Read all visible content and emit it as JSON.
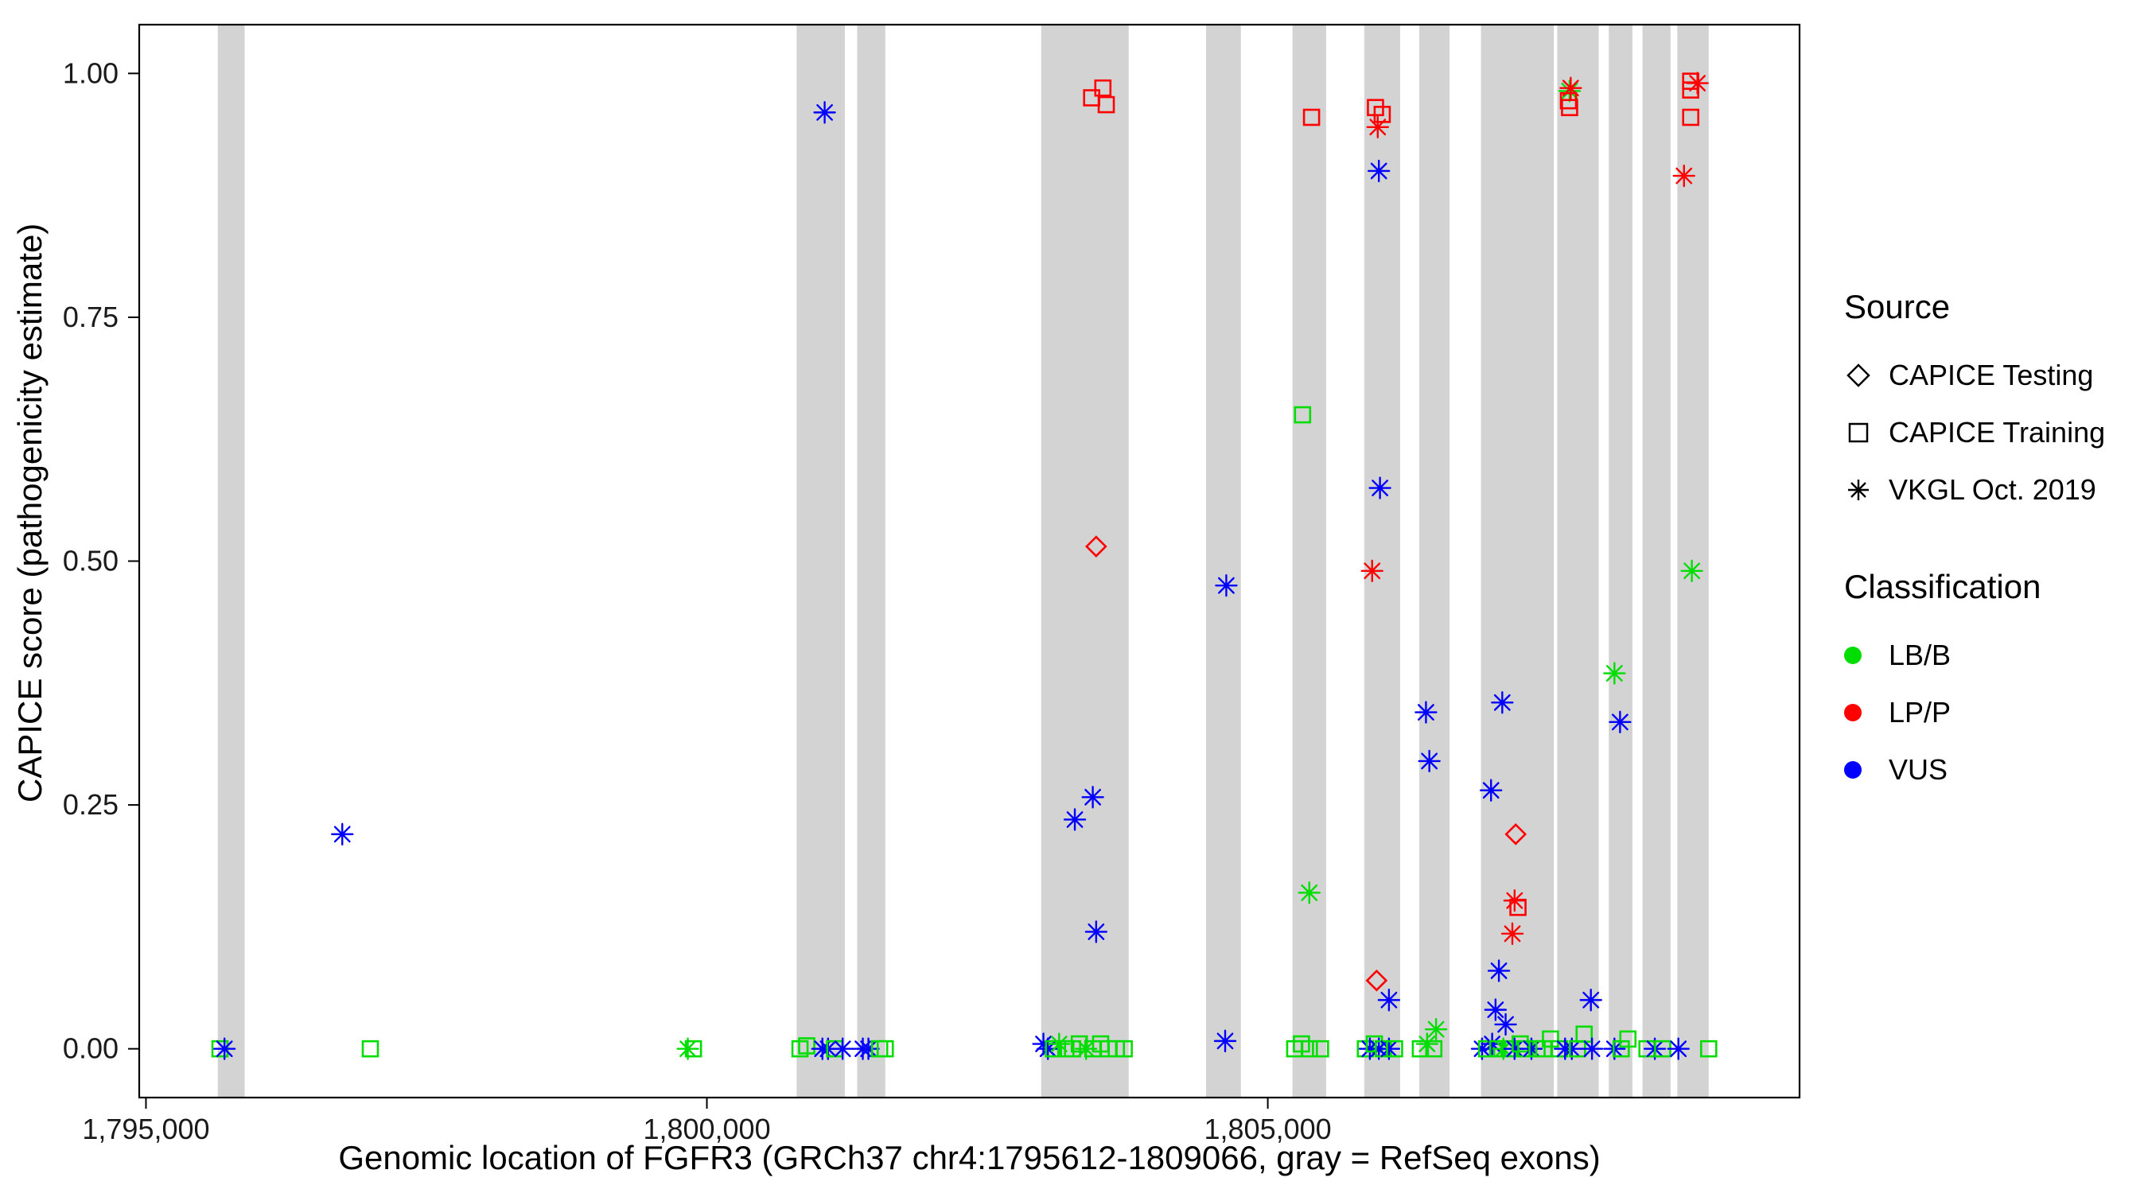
{
  "figure": {
    "background": "#FFFFFF",
    "panel_border_color": "#000000",
    "band_color": "#D3D3D3",
    "tick_color": "#000000",
    "tick_label_color": "#1A1A1A"
  },
  "axes": {
    "x": {
      "title": "Genomic location of FGFR3 (GRCh37 chr4:1795612-1809066, gray = RefSeq exons)",
      "ticks": [
        {
          "v": 1795000,
          "label": "1,795,000"
        },
        {
          "v": 1800000,
          "label": "1,800,000"
        },
        {
          "v": 1805000,
          "label": "1,805,000"
        }
      ]
    },
    "y": {
      "title": "CAPICE score (pathogenicity estimate)",
      "ticks": [
        {
          "v": 0.0,
          "label": "0.00"
        },
        {
          "v": 0.25,
          "label": "0.25"
        },
        {
          "v": 0.5,
          "label": "0.50"
        },
        {
          "v": 0.75,
          "label": "0.75"
        },
        {
          "v": 1.0,
          "label": "1.00"
        }
      ]
    }
  },
  "legend": {
    "source": {
      "title": "Source",
      "items": [
        {
          "label": "CAPICE Testing",
          "shape": "diamond"
        },
        {
          "label": "CAPICE Training",
          "shape": "square"
        },
        {
          "label": "VKGL Oct. 2019",
          "shape": "asterisk"
        }
      ]
    },
    "classification": {
      "title": "Classification",
      "items": [
        {
          "label": "LB/B",
          "class": "LB/B"
        },
        {
          "label": "LP/P",
          "class": "LP/P"
        },
        {
          "label": "VUS",
          "class": "VUS"
        }
      ]
    }
  },
  "chart_data": {
    "type": "scatter",
    "title": "",
    "xlabel": "Genomic location of FGFR3 (GRCh37 chr4:1795612-1809066, gray = RefSeq exons)",
    "ylabel": "CAPICE score (pathogenicity estimate)",
    "xlim": [
      1794940,
      1809740
    ],
    "ylim": [
      -0.05,
      1.05
    ],
    "grid": false,
    "legend_position": "right",
    "colors": {
      "LB/B": "#00DD00",
      "LP/P": "#FF0000",
      "VUS": "#0000FF"
    },
    "exon_bands": [
      [
        1795640,
        1795880
      ],
      [
        1800800,
        1801230
      ],
      [
        1801340,
        1801590
      ],
      [
        1802980,
        1803760
      ],
      [
        1804450,
        1804760
      ],
      [
        1805220,
        1805520
      ],
      [
        1805860,
        1806180
      ],
      [
        1806350,
        1806620
      ],
      [
        1806900,
        1807550
      ],
      [
        1807580,
        1807950
      ],
      [
        1808040,
        1808250
      ],
      [
        1808340,
        1808590
      ],
      [
        1808650,
        1808930
      ]
    ],
    "points": [
      {
        "x": 1796750,
        "y": 0.22,
        "shape": "asterisk",
        "cls": "VUS"
      },
      {
        "x": 1801050,
        "y": 0.96,
        "shape": "asterisk",
        "cls": "VUS"
      },
      {
        "x": 1803430,
        "y": 0.975,
        "shape": "square",
        "cls": "LP/P"
      },
      {
        "x": 1803530,
        "y": 0.985,
        "shape": "square",
        "cls": "LP/P"
      },
      {
        "x": 1803560,
        "y": 0.968,
        "shape": "square",
        "cls": "LP/P"
      },
      {
        "x": 1803470,
        "y": 0.515,
        "shape": "diamond",
        "cls": "LP/P"
      },
      {
        "x": 1803280,
        "y": 0.235,
        "shape": "asterisk",
        "cls": "VUS"
      },
      {
        "x": 1803440,
        "y": 0.258,
        "shape": "asterisk",
        "cls": "VUS"
      },
      {
        "x": 1803470,
        "y": 0.12,
        "shape": "asterisk",
        "cls": "VUS"
      },
      {
        "x": 1804630,
        "y": 0.475,
        "shape": "asterisk",
        "cls": "VUS"
      },
      {
        "x": 1805390,
        "y": 0.955,
        "shape": "square",
        "cls": "LP/P"
      },
      {
        "x": 1805310,
        "y": 0.65,
        "shape": "square",
        "cls": "LB/B"
      },
      {
        "x": 1805370,
        "y": 0.16,
        "shape": "asterisk",
        "cls": "LB/B"
      },
      {
        "x": 1805960,
        "y": 0.965,
        "shape": "square",
        "cls": "LP/P"
      },
      {
        "x": 1806020,
        "y": 0.958,
        "shape": "square",
        "cls": "LP/P"
      },
      {
        "x": 1805980,
        "y": 0.945,
        "shape": "asterisk",
        "cls": "LP/P"
      },
      {
        "x": 1805990,
        "y": 0.9,
        "shape": "asterisk",
        "cls": "VUS"
      },
      {
        "x": 1806000,
        "y": 0.575,
        "shape": "asterisk",
        "cls": "VUS"
      },
      {
        "x": 1805930,
        "y": 0.49,
        "shape": "asterisk",
        "cls": "LP/P"
      },
      {
        "x": 1805970,
        "y": 0.07,
        "shape": "diamond",
        "cls": "LP/P"
      },
      {
        "x": 1806080,
        "y": 0.05,
        "shape": "asterisk",
        "cls": "VUS"
      },
      {
        "x": 1806410,
        "y": 0.345,
        "shape": "asterisk",
        "cls": "VUS"
      },
      {
        "x": 1806440,
        "y": 0.295,
        "shape": "asterisk",
        "cls": "VUS"
      },
      {
        "x": 1806500,
        "y": 0.02,
        "shape": "asterisk",
        "cls": "LB/B"
      },
      {
        "x": 1807090,
        "y": 0.355,
        "shape": "asterisk",
        "cls": "VUS"
      },
      {
        "x": 1806990,
        "y": 0.265,
        "shape": "asterisk",
        "cls": "VUS"
      },
      {
        "x": 1807060,
        "y": 0.08,
        "shape": "asterisk",
        "cls": "VUS"
      },
      {
        "x": 1807030,
        "y": 0.04,
        "shape": "asterisk",
        "cls": "VUS"
      },
      {
        "x": 1807120,
        "y": 0.025,
        "shape": "asterisk",
        "cls": "VUS"
      },
      {
        "x": 1807210,
        "y": 0.22,
        "shape": "diamond",
        "cls": "LP/P"
      },
      {
        "x": 1807200,
        "y": 0.152,
        "shape": "asterisk",
        "cls": "LP/P"
      },
      {
        "x": 1807230,
        "y": 0.145,
        "shape": "square",
        "cls": "LP/P"
      },
      {
        "x": 1807180,
        "y": 0.118,
        "shape": "asterisk",
        "cls": "LP/P"
      },
      {
        "x": 1807690,
        "y": 0.982,
        "shape": "asterisk",
        "cls": "LB/B"
      },
      {
        "x": 1807700,
        "y": 0.985,
        "shape": "asterisk",
        "cls": "LP/P"
      },
      {
        "x": 1807680,
        "y": 0.972,
        "shape": "square",
        "cls": "LP/P"
      },
      {
        "x": 1807690,
        "y": 0.965,
        "shape": "square",
        "cls": "LP/P"
      },
      {
        "x": 1807880,
        "y": 0.05,
        "shape": "asterisk",
        "cls": "VUS"
      },
      {
        "x": 1808090,
        "y": 0.385,
        "shape": "asterisk",
        "cls": "LB/B"
      },
      {
        "x": 1808140,
        "y": 0.335,
        "shape": "asterisk",
        "cls": "VUS"
      },
      {
        "x": 1808770,
        "y": 0.992,
        "shape": "square",
        "cls": "LP/P"
      },
      {
        "x": 1808830,
        "y": 0.99,
        "shape": "asterisk",
        "cls": "LP/P"
      },
      {
        "x": 1808770,
        "y": 0.983,
        "shape": "square",
        "cls": "LP/P"
      },
      {
        "x": 1808770,
        "y": 0.955,
        "shape": "square",
        "cls": "LP/P"
      },
      {
        "x": 1808710,
        "y": 0.895,
        "shape": "asterisk",
        "cls": "LP/P"
      },
      {
        "x": 1808780,
        "y": 0.49,
        "shape": "asterisk",
        "cls": "LB/B"
      },
      {
        "x": 1795660,
        "y": 0.0,
        "shape": "square",
        "cls": "LB/B"
      },
      {
        "x": 1795700,
        "y": 0.0,
        "shape": "asterisk",
        "cls": "VUS"
      },
      {
        "x": 1797000,
        "y": 0.0,
        "shape": "square",
        "cls": "LB/B"
      },
      {
        "x": 1799830,
        "y": 0.0,
        "shape": "asterisk",
        "cls": "LB/B"
      },
      {
        "x": 1799880,
        "y": 0.0,
        "shape": "square",
        "cls": "LB/B"
      },
      {
        "x": 1800830,
        "y": 0.0,
        "shape": "square",
        "cls": "LB/B"
      },
      {
        "x": 1800890,
        "y": 0.003,
        "shape": "square",
        "cls": "LB/B"
      },
      {
        "x": 1801030,
        "y": 0.0,
        "shape": "asterisk",
        "cls": "VUS"
      },
      {
        "x": 1801080,
        "y": 0.0,
        "shape": "asterisk",
        "cls": "VUS"
      },
      {
        "x": 1801140,
        "y": 0.0,
        "shape": "square",
        "cls": "LB/B"
      },
      {
        "x": 1801210,
        "y": 0.0,
        "shape": "asterisk",
        "cls": "VUS"
      },
      {
        "x": 1801390,
        "y": 0.0,
        "shape": "asterisk",
        "cls": "VUS"
      },
      {
        "x": 1801440,
        "y": 0.0,
        "shape": "asterisk",
        "cls": "VUS"
      },
      {
        "x": 1801540,
        "y": 0.0,
        "shape": "square",
        "cls": "LB/B"
      },
      {
        "x": 1801590,
        "y": 0.0,
        "shape": "square",
        "cls": "LB/B"
      },
      {
        "x": 1803000,
        "y": 0.005,
        "shape": "asterisk",
        "cls": "VUS"
      },
      {
        "x": 1803040,
        "y": 0.0,
        "shape": "asterisk",
        "cls": "VUS"
      },
      {
        "x": 1803090,
        "y": 0.0,
        "shape": "square",
        "cls": "LB/B"
      },
      {
        "x": 1803140,
        "y": 0.005,
        "shape": "asterisk",
        "cls": "LB/B"
      },
      {
        "x": 1803200,
        "y": 0.0,
        "shape": "square",
        "cls": "LB/B"
      },
      {
        "x": 1803260,
        "y": 0.0,
        "shape": "square",
        "cls": "LB/B"
      },
      {
        "x": 1803320,
        "y": 0.005,
        "shape": "square",
        "cls": "LB/B"
      },
      {
        "x": 1803380,
        "y": 0.0,
        "shape": "asterisk",
        "cls": "LB/B"
      },
      {
        "x": 1803440,
        "y": 0.0,
        "shape": "square",
        "cls": "LB/B"
      },
      {
        "x": 1803510,
        "y": 0.005,
        "shape": "square",
        "cls": "LB/B"
      },
      {
        "x": 1803580,
        "y": 0.0,
        "shape": "square",
        "cls": "LB/B"
      },
      {
        "x": 1803650,
        "y": 0.0,
        "shape": "square",
        "cls": "LB/B"
      },
      {
        "x": 1803720,
        "y": 0.0,
        "shape": "square",
        "cls": "LB/B"
      },
      {
        "x": 1804620,
        "y": 0.008,
        "shape": "asterisk",
        "cls": "VUS"
      },
      {
        "x": 1805240,
        "y": 0.0,
        "shape": "square",
        "cls": "LB/B"
      },
      {
        "x": 1805300,
        "y": 0.005,
        "shape": "square",
        "cls": "LB/B"
      },
      {
        "x": 1805370,
        "y": 0.0,
        "shape": "square",
        "cls": "LB/B"
      },
      {
        "x": 1805470,
        "y": 0.0,
        "shape": "square",
        "cls": "LB/B"
      },
      {
        "x": 1805870,
        "y": 0.0,
        "shape": "square",
        "cls": "LB/B"
      },
      {
        "x": 1805910,
        "y": 0.0,
        "shape": "asterisk",
        "cls": "VUS"
      },
      {
        "x": 1805950,
        "y": 0.005,
        "shape": "square",
        "cls": "LB/B"
      },
      {
        "x": 1805990,
        "y": 0.0,
        "shape": "asterisk",
        "cls": "VUS"
      },
      {
        "x": 1806030,
        "y": 0.0,
        "shape": "square",
        "cls": "LB/B"
      },
      {
        "x": 1806080,
        "y": 0.0,
        "shape": "asterisk",
        "cls": "VUS"
      },
      {
        "x": 1806130,
        "y": 0.0,
        "shape": "square",
        "cls": "LB/B"
      },
      {
        "x": 1806360,
        "y": 0.0,
        "shape": "square",
        "cls": "LB/B"
      },
      {
        "x": 1806420,
        "y": 0.005,
        "shape": "asterisk",
        "cls": "LB/B"
      },
      {
        "x": 1806480,
        "y": 0.0,
        "shape": "square",
        "cls": "LB/B"
      },
      {
        "x": 1806910,
        "y": 0.0,
        "shape": "asterisk",
        "cls": "VUS"
      },
      {
        "x": 1806950,
        "y": 0.0,
        "shape": "square",
        "cls": "LB/B"
      },
      {
        "x": 1807000,
        "y": 0.005,
        "shape": "asterisk",
        "cls": "VUS"
      },
      {
        "x": 1807050,
        "y": 0.0,
        "shape": "square",
        "cls": "LB/B"
      },
      {
        "x": 1807100,
        "y": 0.0,
        "shape": "asterisk",
        "cls": "LB/B"
      },
      {
        "x": 1807150,
        "y": 0.0,
        "shape": "square",
        "cls": "LB/B"
      },
      {
        "x": 1807200,
        "y": 0.0,
        "shape": "asterisk",
        "cls": "VUS"
      },
      {
        "x": 1807250,
        "y": 0.005,
        "shape": "square",
        "cls": "LB/B"
      },
      {
        "x": 1807300,
        "y": 0.0,
        "shape": "square",
        "cls": "LB/B"
      },
      {
        "x": 1807350,
        "y": 0.0,
        "shape": "asterisk",
        "cls": "VUS"
      },
      {
        "x": 1807400,
        "y": 0.0,
        "shape": "square",
        "cls": "LB/B"
      },
      {
        "x": 1807460,
        "y": 0.0,
        "shape": "square",
        "cls": "LB/B"
      },
      {
        "x": 1807520,
        "y": 0.01,
        "shape": "square",
        "cls": "LB/B"
      },
      {
        "x": 1807600,
        "y": 0.0,
        "shape": "square",
        "cls": "LB/B"
      },
      {
        "x": 1807650,
        "y": 0.0,
        "shape": "asterisk",
        "cls": "VUS"
      },
      {
        "x": 1807710,
        "y": 0.0,
        "shape": "asterisk",
        "cls": "VUS"
      },
      {
        "x": 1807760,
        "y": 0.0,
        "shape": "square",
        "cls": "LB/B"
      },
      {
        "x": 1807820,
        "y": 0.015,
        "shape": "square",
        "cls": "LB/B"
      },
      {
        "x": 1807890,
        "y": 0.0,
        "shape": "asterisk",
        "cls": "VUS"
      },
      {
        "x": 1808090,
        "y": 0.0,
        "shape": "asterisk",
        "cls": "VUS"
      },
      {
        "x": 1808150,
        "y": 0.0,
        "shape": "square",
        "cls": "LB/B"
      },
      {
        "x": 1808210,
        "y": 0.01,
        "shape": "square",
        "cls": "LB/B"
      },
      {
        "x": 1808380,
        "y": 0.0,
        "shape": "square",
        "cls": "LB/B"
      },
      {
        "x": 1808450,
        "y": 0.0,
        "shape": "asterisk",
        "cls": "VUS"
      },
      {
        "x": 1808520,
        "y": 0.0,
        "shape": "square",
        "cls": "LB/B"
      },
      {
        "x": 1808660,
        "y": 0.0,
        "shape": "asterisk",
        "cls": "VUS"
      },
      {
        "x": 1808930,
        "y": 0.0,
        "shape": "square",
        "cls": "LB/B"
      }
    ]
  }
}
